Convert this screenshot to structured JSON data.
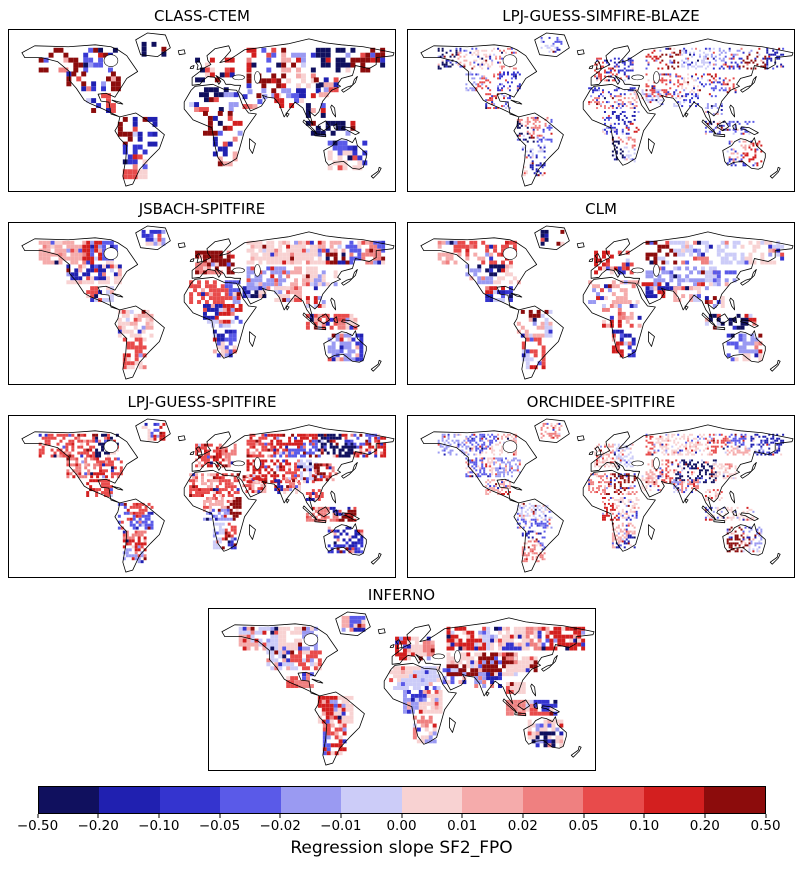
{
  "chart_data": {
    "type": "heatmap",
    "layout": "seven global world-map small multiples with one shared discrete diverging colorbar at bottom",
    "panels": [
      {
        "title": "CLASS-CTEM",
        "style": {
          "cell": 5,
          "coverage": 0.5,
          "weights": [
            5,
            4,
            4,
            3,
            2,
            2,
            2,
            2,
            3,
            4,
            4,
            5
          ]
        }
      },
      {
        "title": "LPJ-GUESS-SIMFIRE-BLAZE",
        "style": {
          "cell": 2,
          "coverage": 0.32,
          "weights": [
            2,
            3,
            4,
            5,
            4,
            3,
            2,
            2,
            2,
            2,
            2,
            2
          ]
        }
      },
      {
        "title": "JSBACH-SPITFIRE",
        "style": {
          "cell": 4,
          "coverage": 0.75,
          "weights": [
            1,
            2,
            3,
            3,
            2,
            2,
            8,
            5,
            4,
            4,
            3,
            2
          ]
        }
      },
      {
        "title": "CLM",
        "style": {
          "cell": 4,
          "coverage": 0.55,
          "weights": [
            2,
            3,
            3,
            3,
            4,
            4,
            4,
            4,
            3,
            3,
            3,
            2
          ]
        }
      },
      {
        "title": "LPJ-GUESS-SPITFIRE",
        "style": {
          "cell": 3,
          "coverage": 0.62,
          "weights": [
            1,
            2,
            2,
            2,
            1,
            1,
            2,
            3,
            4,
            6,
            7,
            6
          ]
        }
      },
      {
        "title": "ORCHIDEE-SPITFIRE",
        "style": {
          "cell": 2,
          "coverage": 0.45,
          "weights": [
            1,
            2,
            2,
            3,
            3,
            3,
            8,
            4,
            3,
            3,
            3,
            2
          ]
        }
      },
      {
        "title": "INFERNO",
        "style": {
          "cell": 4,
          "coverage": 0.82,
          "weights": [
            1,
            2,
            3,
            3,
            3,
            2,
            10,
            4,
            3,
            2,
            2,
            1
          ]
        }
      }
    ],
    "colorbar": {
      "label": "Regression slope SF2_FPO",
      "tick_labels": [
        "−0.50",
        "−0.20",
        "−0.10",
        "−0.05",
        "−0.02",
        "−0.01",
        "0.00",
        "0.01",
        "0.02",
        "0.05",
        "0.10",
        "0.20",
        "0.50"
      ],
      "tick_values": [
        -0.5,
        -0.2,
        -0.1,
        -0.05,
        -0.02,
        -0.01,
        0.0,
        0.01,
        0.02,
        0.05,
        0.1,
        0.2,
        0.5
      ],
      "colors": [
        "#10105e",
        "#2020b0",
        "#3434cf",
        "#5a5ae8",
        "#9a9af2",
        "#ccccf8",
        "#f8d2d2",
        "#f5abab",
        "#ef8080",
        "#e84b4b",
        "#d31f1f",
        "#8c0c0c"
      ]
    }
  }
}
